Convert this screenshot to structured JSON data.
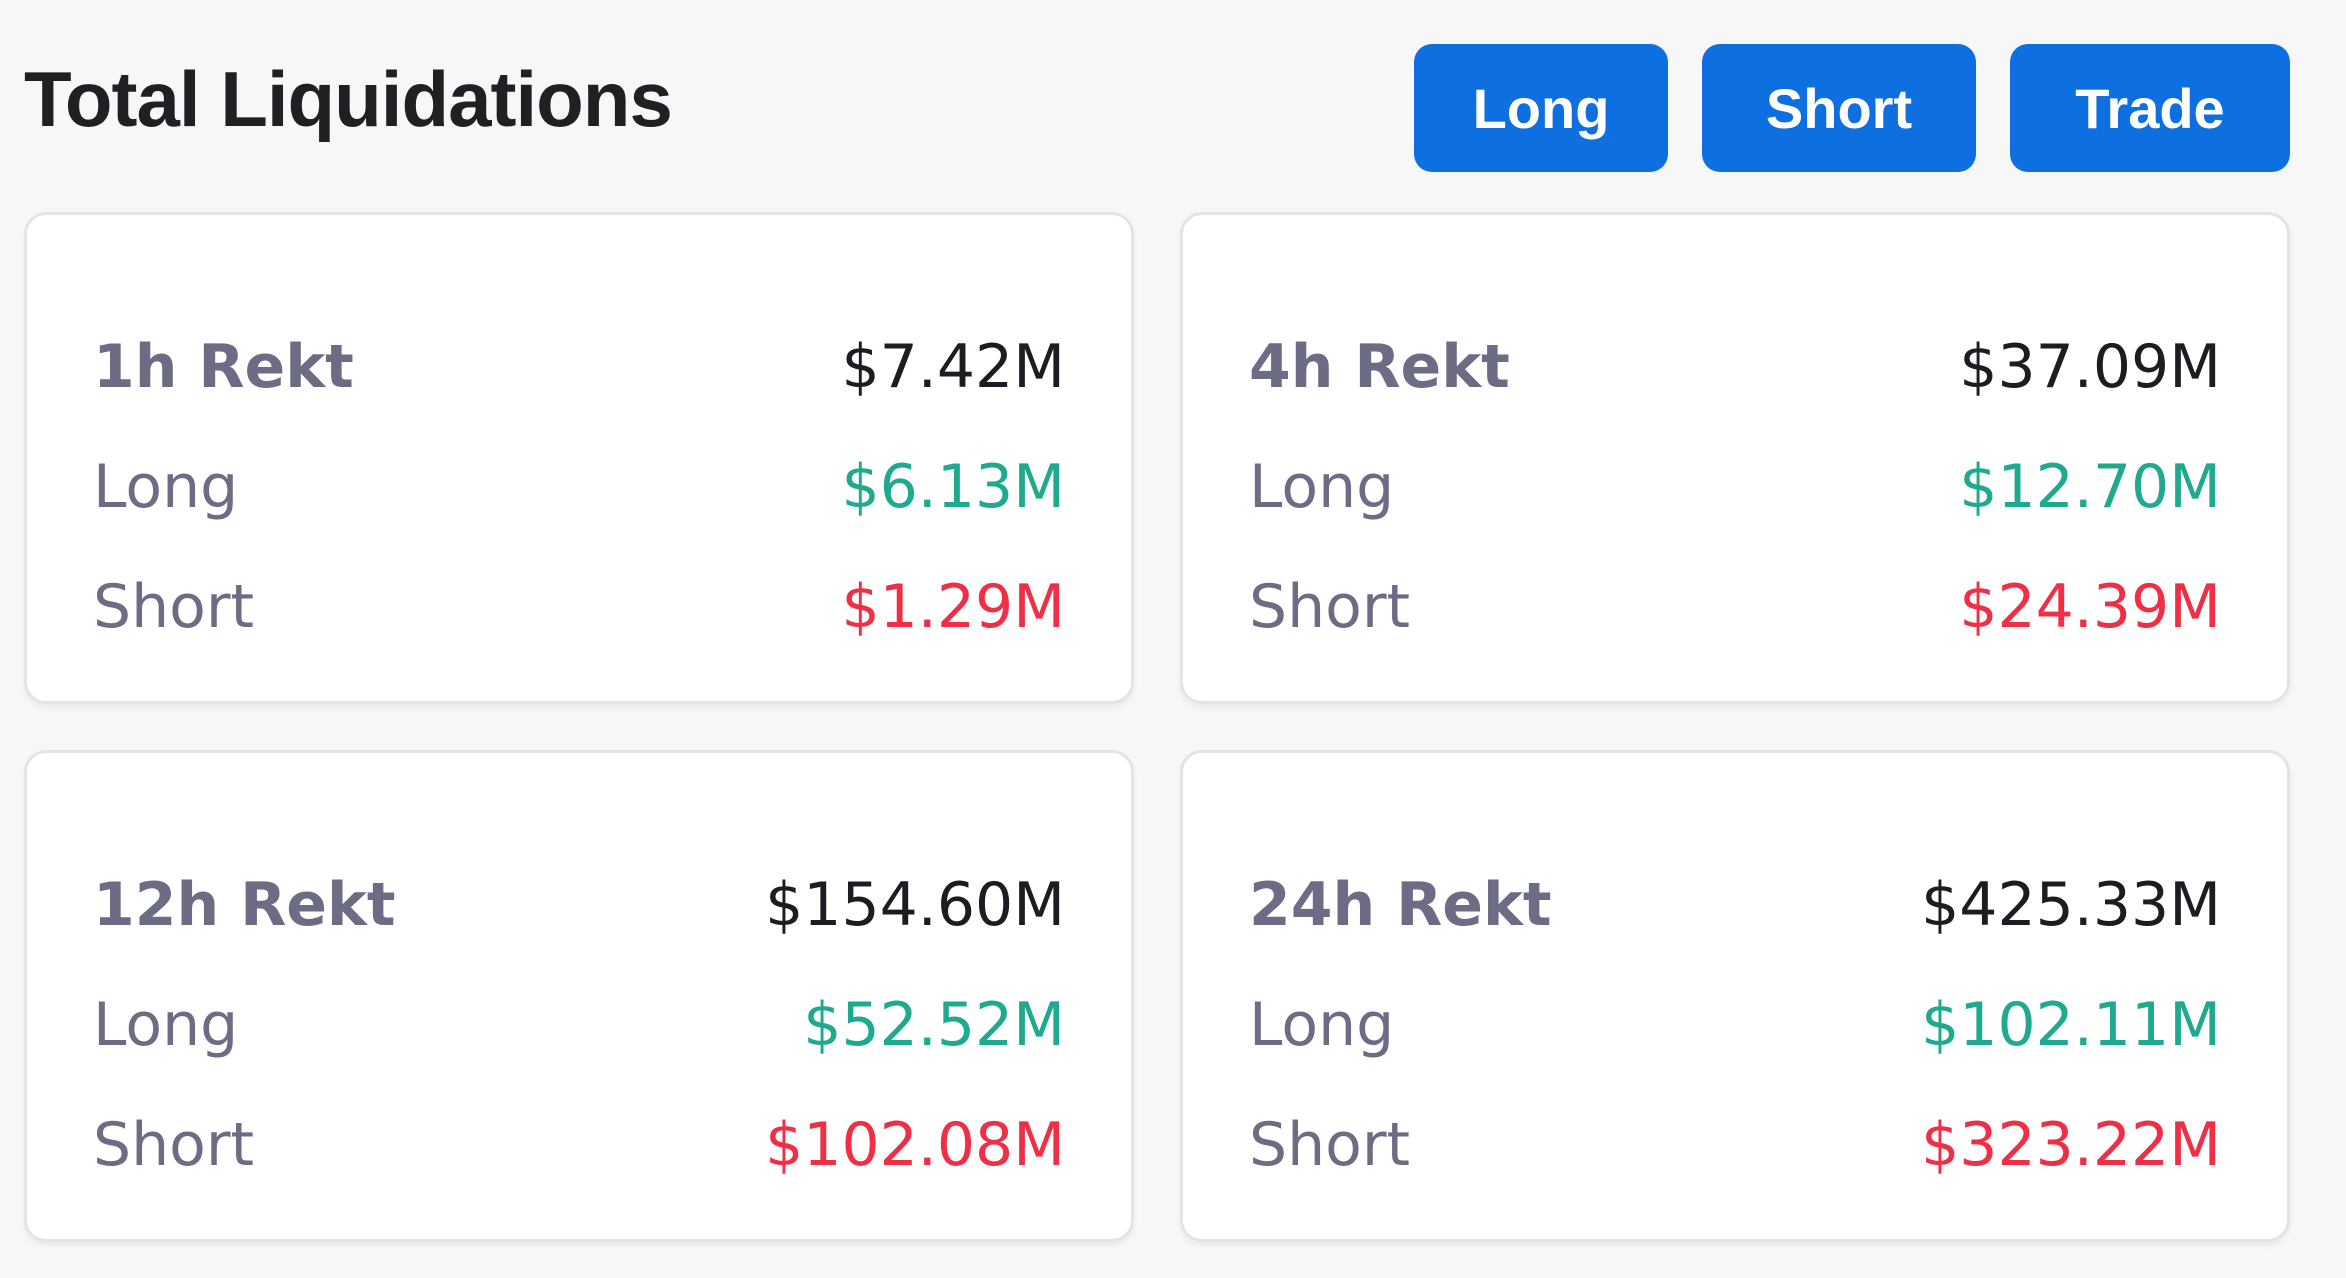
{
  "header": {
    "title": "Total Liquidations",
    "buttons": {
      "long": "Long",
      "short": "Short",
      "trade": "Trade"
    }
  },
  "colors": {
    "accent": "#0d6fe0",
    "long": "#1fa98e",
    "short": "#ef2f46",
    "label": "#6c6c84"
  },
  "cards": [
    {
      "title": "1h Rekt",
      "total": "$7.42M",
      "long_label": "Long",
      "long": "$6.13M",
      "short_label": "Short",
      "short": "$1.29M"
    },
    {
      "title": "4h Rekt",
      "total": "$37.09M",
      "long_label": "Long",
      "long": "$12.70M",
      "short_label": "Short",
      "short": "$24.39M"
    },
    {
      "title": "12h Rekt",
      "total": "$154.60M",
      "long_label": "Long",
      "long": "$52.52M",
      "short_label": "Short",
      "short": "$102.08M"
    },
    {
      "title": "24h Rekt",
      "total": "$425.33M",
      "long_label": "Long",
      "long": "$102.11M",
      "short_label": "Short",
      "short": "$323.22M"
    }
  ]
}
